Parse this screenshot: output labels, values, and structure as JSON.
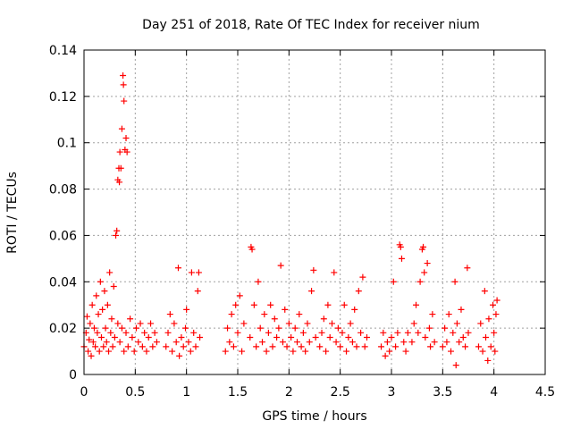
{
  "chart_data": {
    "type": "scatter",
    "title": "Day 251 of 2018, Rate Of TEC Index for receiver nium",
    "xlabel": "GPS time / hours",
    "ylabel": "ROTI / TECUs",
    "xlim": [
      0,
      4.5
    ],
    "ylim": [
      0,
      0.14
    ],
    "x_ticks": [
      0,
      0.5,
      1,
      1.5,
      2,
      2.5,
      3,
      3.5,
      4,
      4.5
    ],
    "x_tick_labels": [
      "0",
      "0.5",
      "1",
      "1.5",
      "2",
      "2.5",
      "3",
      "3.5",
      "4",
      "4.5"
    ],
    "y_ticks": [
      0,
      0.02,
      0.04,
      0.06,
      0.08,
      0.1,
      0.12,
      0.14
    ],
    "y_tick_labels": [
      "0",
      "0.02",
      "0.04",
      "0.06",
      "0.08",
      "0.1",
      "0.12",
      "0.14"
    ],
    "grid": true,
    "marker": "+",
    "color": "#ff0000",
    "series": [
      {
        "name": "ROTI",
        "points": [
          [
            0.0,
            0.012
          ],
          [
            0.02,
            0.018
          ],
          [
            0.03,
            0.025
          ],
          [
            0.04,
            0.01
          ],
          [
            0.05,
            0.015
          ],
          [
            0.06,
            0.022
          ],
          [
            0.07,
            0.008
          ],
          [
            0.08,
            0.03
          ],
          [
            0.09,
            0.014
          ],
          [
            0.1,
            0.02
          ],
          [
            0.11,
            0.012
          ],
          [
            0.12,
            0.034
          ],
          [
            0.13,
            0.018
          ],
          [
            0.14,
            0.026
          ],
          [
            0.15,
            0.01
          ],
          [
            0.16,
            0.04
          ],
          [
            0.17,
            0.016
          ],
          [
            0.18,
            0.028
          ],
          [
            0.19,
            0.012
          ],
          [
            0.2,
            0.036
          ],
          [
            0.21,
            0.02
          ],
          [
            0.22,
            0.014
          ],
          [
            0.23,
            0.03
          ],
          [
            0.24,
            0.01
          ],
          [
            0.25,
            0.044
          ],
          [
            0.26,
            0.018
          ],
          [
            0.27,
            0.024
          ],
          [
            0.28,
            0.012
          ],
          [
            0.29,
            0.038
          ],
          [
            0.3,
            0.016
          ],
          [
            0.31,
            0.06
          ],
          [
            0.32,
            0.062
          ],
          [
            0.33,
            0.084
          ],
          [
            0.34,
            0.089
          ],
          [
            0.345,
            0.083
          ],
          [
            0.35,
            0.096
          ],
          [
            0.36,
            0.089
          ],
          [
            0.37,
            0.106
          ],
          [
            0.38,
            0.129
          ],
          [
            0.385,
            0.125
          ],
          [
            0.39,
            0.118
          ],
          [
            0.4,
            0.097
          ],
          [
            0.41,
            0.102
          ],
          [
            0.42,
            0.096
          ],
          [
            0.33,
            0.022
          ],
          [
            0.35,
            0.014
          ],
          [
            0.37,
            0.02
          ],
          [
            0.39,
            0.01
          ],
          [
            0.41,
            0.018
          ],
          [
            0.43,
            0.012
          ],
          [
            0.45,
            0.024
          ],
          [
            0.47,
            0.016
          ],
          [
            0.49,
            0.01
          ],
          [
            0.51,
            0.02
          ],
          [
            0.53,
            0.014
          ],
          [
            0.55,
            0.022
          ],
          [
            0.57,
            0.012
          ],
          [
            0.59,
            0.018
          ],
          [
            0.61,
            0.01
          ],
          [
            0.63,
            0.016
          ],
          [
            0.65,
            0.022
          ],
          [
            0.67,
            0.012
          ],
          [
            0.69,
            0.018
          ],
          [
            0.71,
            0.014
          ],
          [
            0.8,
            0.012
          ],
          [
            0.82,
            0.018
          ],
          [
            0.84,
            0.026
          ],
          [
            0.86,
            0.01
          ],
          [
            0.88,
            0.022
          ],
          [
            0.9,
            0.014
          ],
          [
            0.92,
            0.046
          ],
          [
            0.93,
            0.008
          ],
          [
            0.95,
            0.016
          ],
          [
            0.97,
            0.012
          ],
          [
            0.99,
            0.02
          ],
          [
            1.0,
            0.028
          ],
          [
            1.02,
            0.014
          ],
          [
            1.04,
            0.01
          ],
          [
            1.05,
            0.044
          ],
          [
            1.07,
            0.018
          ],
          [
            1.09,
            0.012
          ],
          [
            1.11,
            0.036
          ],
          [
            1.12,
            0.044
          ],
          [
            1.13,
            0.016
          ],
          [
            1.38,
            0.01
          ],
          [
            1.4,
            0.02
          ],
          [
            1.42,
            0.014
          ],
          [
            1.44,
            0.026
          ],
          [
            1.46,
            0.012
          ],
          [
            1.48,
            0.03
          ],
          [
            1.5,
            0.018
          ],
          [
            1.52,
            0.034
          ],
          [
            1.54,
            0.01
          ],
          [
            1.56,
            0.022
          ],
          [
            1.62,
            0.016
          ],
          [
            1.63,
            0.055
          ],
          [
            1.64,
            0.054
          ],
          [
            1.66,
            0.03
          ],
          [
            1.68,
            0.012
          ],
          [
            1.7,
            0.04
          ],
          [
            1.72,
            0.02
          ],
          [
            1.74,
            0.014
          ],
          [
            1.76,
            0.026
          ],
          [
            1.78,
            0.01
          ],
          [
            1.8,
            0.018
          ],
          [
            1.82,
            0.03
          ],
          [
            1.84,
            0.012
          ],
          [
            1.86,
            0.024
          ],
          [
            1.88,
            0.016
          ],
          [
            1.9,
            0.02
          ],
          [
            1.92,
            0.047
          ],
          [
            1.94,
            0.014
          ],
          [
            1.96,
            0.028
          ],
          [
            1.98,
            0.012
          ],
          [
            2.0,
            0.022
          ],
          [
            2.02,
            0.016
          ],
          [
            2.04,
            0.01
          ],
          [
            2.06,
            0.02
          ],
          [
            2.08,
            0.014
          ],
          [
            2.1,
            0.026
          ],
          [
            2.12,
            0.012
          ],
          [
            2.14,
            0.018
          ],
          [
            2.16,
            0.01
          ],
          [
            2.18,
            0.022
          ],
          [
            2.2,
            0.014
          ],
          [
            2.22,
            0.036
          ],
          [
            2.24,
            0.045
          ],
          [
            2.26,
            0.016
          ],
          [
            2.3,
            0.012
          ],
          [
            2.32,
            0.018
          ],
          [
            2.34,
            0.024
          ],
          [
            2.36,
            0.01
          ],
          [
            2.38,
            0.03
          ],
          [
            2.4,
            0.016
          ],
          [
            2.42,
            0.022
          ],
          [
            2.44,
            0.044
          ],
          [
            2.46,
            0.014
          ],
          [
            2.48,
            0.02
          ],
          [
            2.5,
            0.012
          ],
          [
            2.52,
            0.018
          ],
          [
            2.54,
            0.03
          ],
          [
            2.56,
            0.01
          ],
          [
            2.58,
            0.016
          ],
          [
            2.6,
            0.022
          ],
          [
            2.62,
            0.014
          ],
          [
            2.64,
            0.028
          ],
          [
            2.66,
            0.012
          ],
          [
            2.68,
            0.036
          ],
          [
            2.7,
            0.018
          ],
          [
            2.72,
            0.042
          ],
          [
            2.74,
            0.012
          ],
          [
            2.76,
            0.016
          ],
          [
            2.9,
            0.012
          ],
          [
            2.92,
            0.018
          ],
          [
            2.94,
            0.008
          ],
          [
            2.96,
            0.014
          ],
          [
            2.98,
            0.01
          ],
          [
            3.0,
            0.016
          ],
          [
            3.02,
            0.04
          ],
          [
            3.04,
            0.012
          ],
          [
            3.06,
            0.018
          ],
          [
            3.08,
            0.056
          ],
          [
            3.09,
            0.055
          ],
          [
            3.1,
            0.05
          ],
          [
            3.12,
            0.014
          ],
          [
            3.14,
            0.01
          ],
          [
            3.16,
            0.018
          ],
          [
            3.2,
            0.014
          ],
          [
            3.22,
            0.022
          ],
          [
            3.24,
            0.03
          ],
          [
            3.26,
            0.018
          ],
          [
            3.28,
            0.04
          ],
          [
            3.3,
            0.054
          ],
          [
            3.31,
            0.055
          ],
          [
            3.32,
            0.044
          ],
          [
            3.33,
            0.016
          ],
          [
            3.35,
            0.048
          ],
          [
            3.37,
            0.02
          ],
          [
            3.38,
            0.012
          ],
          [
            3.4,
            0.026
          ],
          [
            3.42,
            0.014
          ],
          [
            3.5,
            0.012
          ],
          [
            3.52,
            0.02
          ],
          [
            3.54,
            0.014
          ],
          [
            3.56,
            0.026
          ],
          [
            3.58,
            0.01
          ],
          [
            3.6,
            0.018
          ],
          [
            3.62,
            0.04
          ],
          [
            3.63,
            0.004
          ],
          [
            3.64,
            0.022
          ],
          [
            3.66,
            0.014
          ],
          [
            3.68,
            0.028
          ],
          [
            3.7,
            0.016
          ],
          [
            3.72,
            0.012
          ],
          [
            3.74,
            0.046
          ],
          [
            3.75,
            0.018
          ],
          [
            3.85,
            0.012
          ],
          [
            3.87,
            0.022
          ],
          [
            3.89,
            0.01
          ],
          [
            3.91,
            0.036
          ],
          [
            3.92,
            0.016
          ],
          [
            3.94,
            0.006
          ],
          [
            3.95,
            0.024
          ],
          [
            3.97,
            0.012
          ],
          [
            3.99,
            0.03
          ],
          [
            4.0,
            0.018
          ],
          [
            4.01,
            0.01
          ],
          [
            4.02,
            0.026
          ],
          [
            4.03,
            0.032
          ]
        ]
      }
    ]
  }
}
